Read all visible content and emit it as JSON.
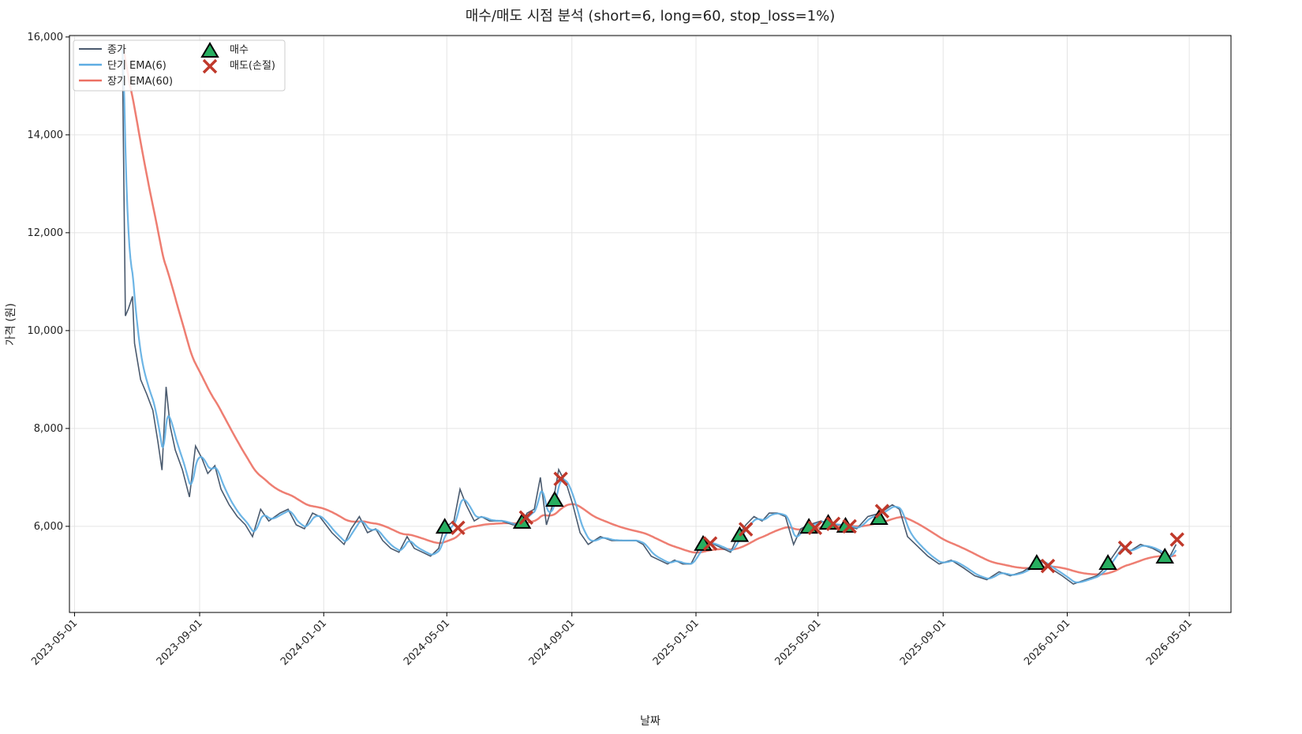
{
  "chart_data": {
    "type": "line",
    "title": "매수/매도 시점 분석 (short=6, long=60, stop_loss=1%)",
    "xlabel": "날짜",
    "ylabel": "가격 (원)",
    "x_unit": "days since 2023-05-01",
    "xlim": [
      -5,
      1137
    ],
    "ylim": [
      4240,
      16030
    ],
    "grid": true,
    "legend_placement": "top-left",
    "x_ticks": [
      {
        "day": 0,
        "label": "2023-05-01"
      },
      {
        "day": 123,
        "label": "2023-09-01"
      },
      {
        "day": 245,
        "label": "2024-01-01"
      },
      {
        "day": 366,
        "label": "2024-05-01"
      },
      {
        "day": 489,
        "label": "2024-09-01"
      },
      {
        "day": 611,
        "label": "2025-01-01"
      },
      {
        "day": 731,
        "label": "2025-05-01"
      },
      {
        "day": 854,
        "label": "2025-09-01"
      },
      {
        "day": 976,
        "label": "2026-01-01"
      },
      {
        "day": 1096,
        "label": "2026-05-01"
      }
    ],
    "y_ticks": [
      {
        "value": 6000,
        "label": "6,000"
      },
      {
        "value": 8000,
        "label": "8,000"
      },
      {
        "value": 10000,
        "label": "10,000"
      },
      {
        "value": 12000,
        "label": "12,000"
      },
      {
        "value": 14000,
        "label": "14,000"
      },
      {
        "value": 16000,
        "label": "16,000"
      }
    ],
    "params": {
      "short": 6,
      "long": 60
    },
    "series": [
      {
        "name": "종가",
        "color": "#4a5a6e",
        "x": [
          47,
          50,
          53,
          57,
          59,
          65,
          71,
          77,
          82,
          86,
          90,
          94,
          99,
          106,
          113,
          119,
          125,
          131,
          138,
          144,
          152,
          160,
          168,
          175,
          183,
          191,
          202,
          210,
          218,
          226,
          234,
          241,
          253,
          265,
          272,
          280,
          288,
          296,
          303,
          311,
          319,
          327,
          334,
          342,
          350,
          358,
          363,
          373,
          379,
          385,
          393,
          400,
          408,
          420,
          431,
          439,
          445,
          452,
          458,
          464,
          470,
          476,
          484,
          490,
          497,
          505,
          517,
          528,
          540,
          552,
          559,
          567,
          575,
          583,
          590,
          598,
          606,
          614,
          621,
          629,
          637,
          645,
          652,
          660,
          668,
          676,
          683,
          691,
          699,
          707,
          714,
          722,
          734,
          746,
          757,
          769,
          780,
          792,
          804,
          811,
          819,
          827,
          839,
          850,
          862,
          874,
          885,
          897,
          909,
          920,
          932,
          944,
          951,
          959,
          971,
          982,
          994,
          1005,
          1013,
          1021,
          1029,
          1036,
          1048,
          1060,
          1067,
          1075,
          1083
        ],
        "y": [
          15800,
          10300,
          10450,
          10700,
          9740,
          9000,
          8700,
          8370,
          7730,
          7150,
          8850,
          8050,
          7560,
          7160,
          6600,
          7640,
          7400,
          7080,
          7240,
          6760,
          6440,
          6200,
          6030,
          5790,
          6350,
          6110,
          6270,
          6350,
          6030,
          5950,
          6270,
          6200,
          5870,
          5630,
          5950,
          6200,
          5870,
          5950,
          5710,
          5550,
          5470,
          5790,
          5550,
          5470,
          5390,
          5550,
          5950,
          6110,
          6760,
          6440,
          6110,
          6200,
          6110,
          6110,
          6030,
          6030,
          6270,
          6350,
          7000,
          6030,
          6440,
          7160,
          6840,
          6440,
          5870,
          5630,
          5790,
          5710,
          5710,
          5710,
          5630,
          5390,
          5310,
          5230,
          5310,
          5230,
          5230,
          5550,
          5710,
          5630,
          5550,
          5470,
          5790,
          6030,
          6200,
          6110,
          6270,
          6270,
          6200,
          5630,
          5950,
          6030,
          6110,
          6030,
          6030,
          5950,
          6200,
          6270,
          6440,
          6350,
          5790,
          5630,
          5390,
          5230,
          5310,
          5150,
          4990,
          4910,
          5070,
          4990,
          5070,
          5230,
          5310,
          5150,
          4990,
          4820,
          4910,
          4990,
          5150,
          5390,
          5630,
          5470,
          5630,
          5550,
          5470,
          5310,
          5630
        ]
      },
      {
        "name": "단기 EMA(6)",
        "color": "#5dade2"
      },
      {
        "name": "장기 EMA(60)",
        "color": "#ec7063"
      }
    ],
    "buy_signals": {
      "name": "매수",
      "color": "#27ae60",
      "x": [
        364,
        440,
        472,
        618,
        654,
        722,
        741,
        758,
        791,
        946,
        1016,
        1072
      ],
      "y": [
        5980,
        6080,
        6530,
        5630,
        5810,
        5980,
        6060,
        6000,
        6160,
        5240,
        5240,
        5370
      ]
    },
    "sell_signals": {
      "name": "매도(손절)",
      "color": "#c0392b",
      "x": [
        377,
        444,
        478,
        625,
        660,
        728,
        746,
        762,
        794,
        957,
        1033,
        1084
      ],
      "y": [
        5970,
        6180,
        6970,
        5650,
        5940,
        5970,
        6050,
        6000,
        6310,
        5190,
        5560,
        5730
      ]
    }
  }
}
